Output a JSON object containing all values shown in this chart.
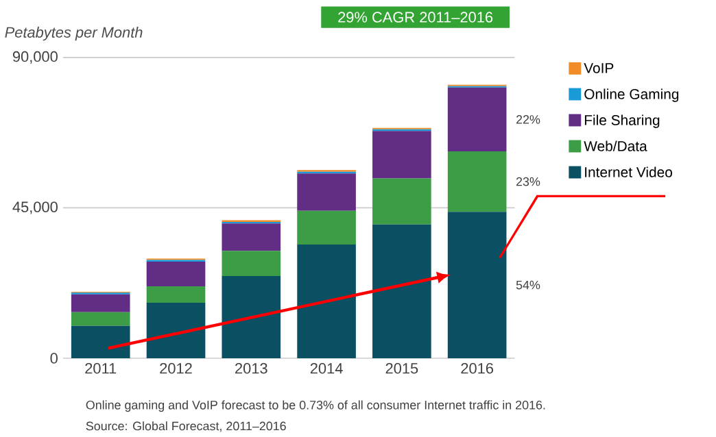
{
  "chart_data": {
    "type": "bar",
    "stacked": true,
    "title": "29% CAGR 2011–2016",
    "ylabel": "*Petabytes per Month*",
    "categories": [
      "2011",
      "2012",
      "2013",
      "2014",
      "2015",
      "2016"
    ],
    "series": [
      {
        "name": "Internet Video",
        "color": "#0b4f63",
        "values": [
          9700,
          16600,
          24600,
          34000,
          40000,
          43800
        ]
      },
      {
        "name": "Web/Data",
        "color": "#3d9c46",
        "values": [
          4100,
          4900,
          7500,
          10100,
          13800,
          18100
        ]
      },
      {
        "name": "File Sharing",
        "color": "#622d84",
        "values": [
          5300,
          7400,
          8200,
          11200,
          14200,
          19100
        ]
      },
      {
        "name": "Online Gaming",
        "color": "#1a9bd7",
        "values": [
          500,
          500,
          500,
          500,
          500,
          400
        ]
      },
      {
        "name": "VoIP",
        "color": "#f28c28",
        "values": [
          300,
          400,
          500,
          500,
          400,
          400
        ]
      }
    ],
    "ylim": [
      0,
      90000
    ],
    "yticks": [
      {
        "value": 0,
        "label": "0"
      },
      {
        "value": 45000,
        "label": "45,000"
      },
      {
        "value": 90000,
        "label": "90,000"
      }
    ],
    "grid": "y",
    "legend": "right",
    "annotations": [
      "54%",
      "23%",
      "22%",
      "Online gaming and VoIP forecast to be 0.73% of all consumer Internet traffic in 2016.",
      "Source: Global Forecast, 2011–2016"
    ]
  }
}
